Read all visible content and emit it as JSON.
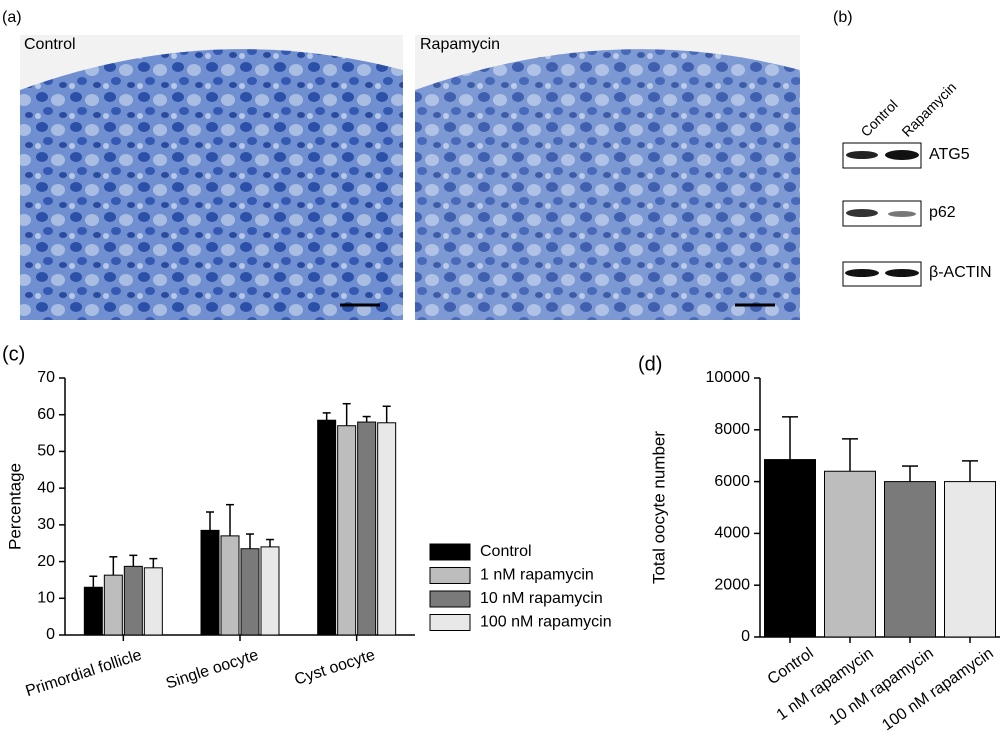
{
  "panels": {
    "a": {
      "label": "(a)",
      "images": [
        "Control",
        "Rapamycin"
      ]
    },
    "b": {
      "label": "(b)",
      "lanes": [
        "Control",
        "Rapamycin"
      ],
      "bands": [
        "ATG5",
        "p62",
        "β-ACTIN"
      ]
    }
  },
  "chart_data": [
    {
      "type": "bar",
      "panel_label": "(c)",
      "ylabel": "Percentage",
      "categories": [
        "Primordial follicle",
        "Single oocyte",
        "Cyst oocyte"
      ],
      "series": [
        {
          "name": "Control",
          "color": "#000000",
          "values": [
            13,
            28.5,
            58.5
          ],
          "errors": [
            3,
            5,
            2
          ]
        },
        {
          "name": "1 nM rapamycin",
          "color": "#bdbdbd",
          "values": [
            16.3,
            27,
            57
          ],
          "errors": [
            5,
            8.5,
            6
          ]
        },
        {
          "name": "10 nM rapamycin",
          "color": "#7a7a7a",
          "values": [
            18.7,
            23.5,
            58
          ],
          "errors": [
            3,
            4,
            1.5
          ]
        },
        {
          "name": "100 nM rapamycin",
          "color": "#e8e8e8",
          "values": [
            18.3,
            24,
            57.8
          ],
          "errors": [
            2.5,
            2,
            4.5
          ]
        }
      ],
      "ylim": [
        0,
        70
      ],
      "yticks": [
        0,
        10,
        20,
        30,
        40,
        50,
        60,
        70
      ],
      "legend": "right"
    },
    {
      "type": "bar",
      "panel_label": "(d)",
      "ylabel": "Total oocyte number",
      "categories": [
        "Control",
        "1 nM rapamycin",
        "10 nM rapamycin",
        "100 nM rapamycin"
      ],
      "values": [
        6850,
        6400,
        6000,
        6000
      ],
      "errors": [
        1650,
        1250,
        600,
        800
      ],
      "colors": [
        "#000000",
        "#bdbdbd",
        "#7a7a7a",
        "#e8e8e8"
      ],
      "ylim": [
        0,
        10000
      ],
      "yticks": [
        0,
        2000,
        4000,
        6000,
        8000,
        10000
      ]
    }
  ]
}
